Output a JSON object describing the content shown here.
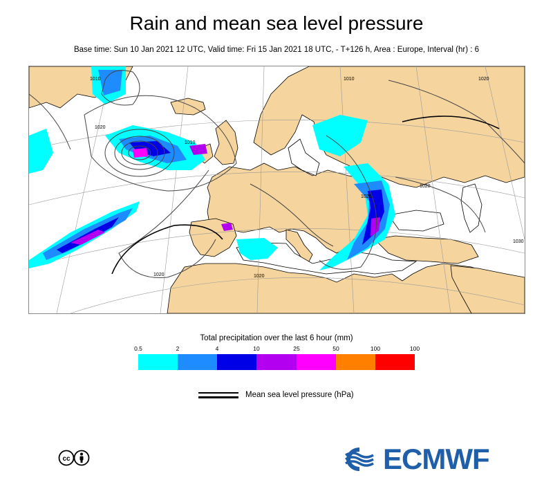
{
  "header": {
    "title": "Rain and mean sea level pressure",
    "subtitle": "Base time: Sun 10 Jan 2021 12 UTC, Valid time: Fri 15 Jan 2021 18 UTC, - T+126 h, Area : Europe, Interval (hr) : 6"
  },
  "map": {
    "area": "Europe",
    "isobar_labels": [
      "1010",
      "1010",
      "1010",
      "1020",
      "1020",
      "1020",
      "1020",
      "1020",
      "1030",
      "1020"
    ],
    "colors": {
      "land": "#f5d49e",
      "sea": "#ffffff",
      "graticule": "#9a9a9a",
      "border": "#000000",
      "isobar": "#444444"
    }
  },
  "legend": {
    "title": "Total precipitation over the last 6 hour (mm)",
    "ticks": [
      "0.5",
      "2",
      "4",
      "10",
      "25",
      "50",
      "100",
      "100"
    ],
    "colors": [
      "#00ffff",
      "#1e8cff",
      "#0000e6",
      "#b400f0",
      "#ff00ff",
      "#ff8000",
      "#ff0000"
    ],
    "msl_label": "Mean sea level pressure (hPa)"
  },
  "footer": {
    "cc_icon": "cc-by-icon",
    "logo_text": "ECMWF",
    "logo_color": "#1f5ea8"
  }
}
